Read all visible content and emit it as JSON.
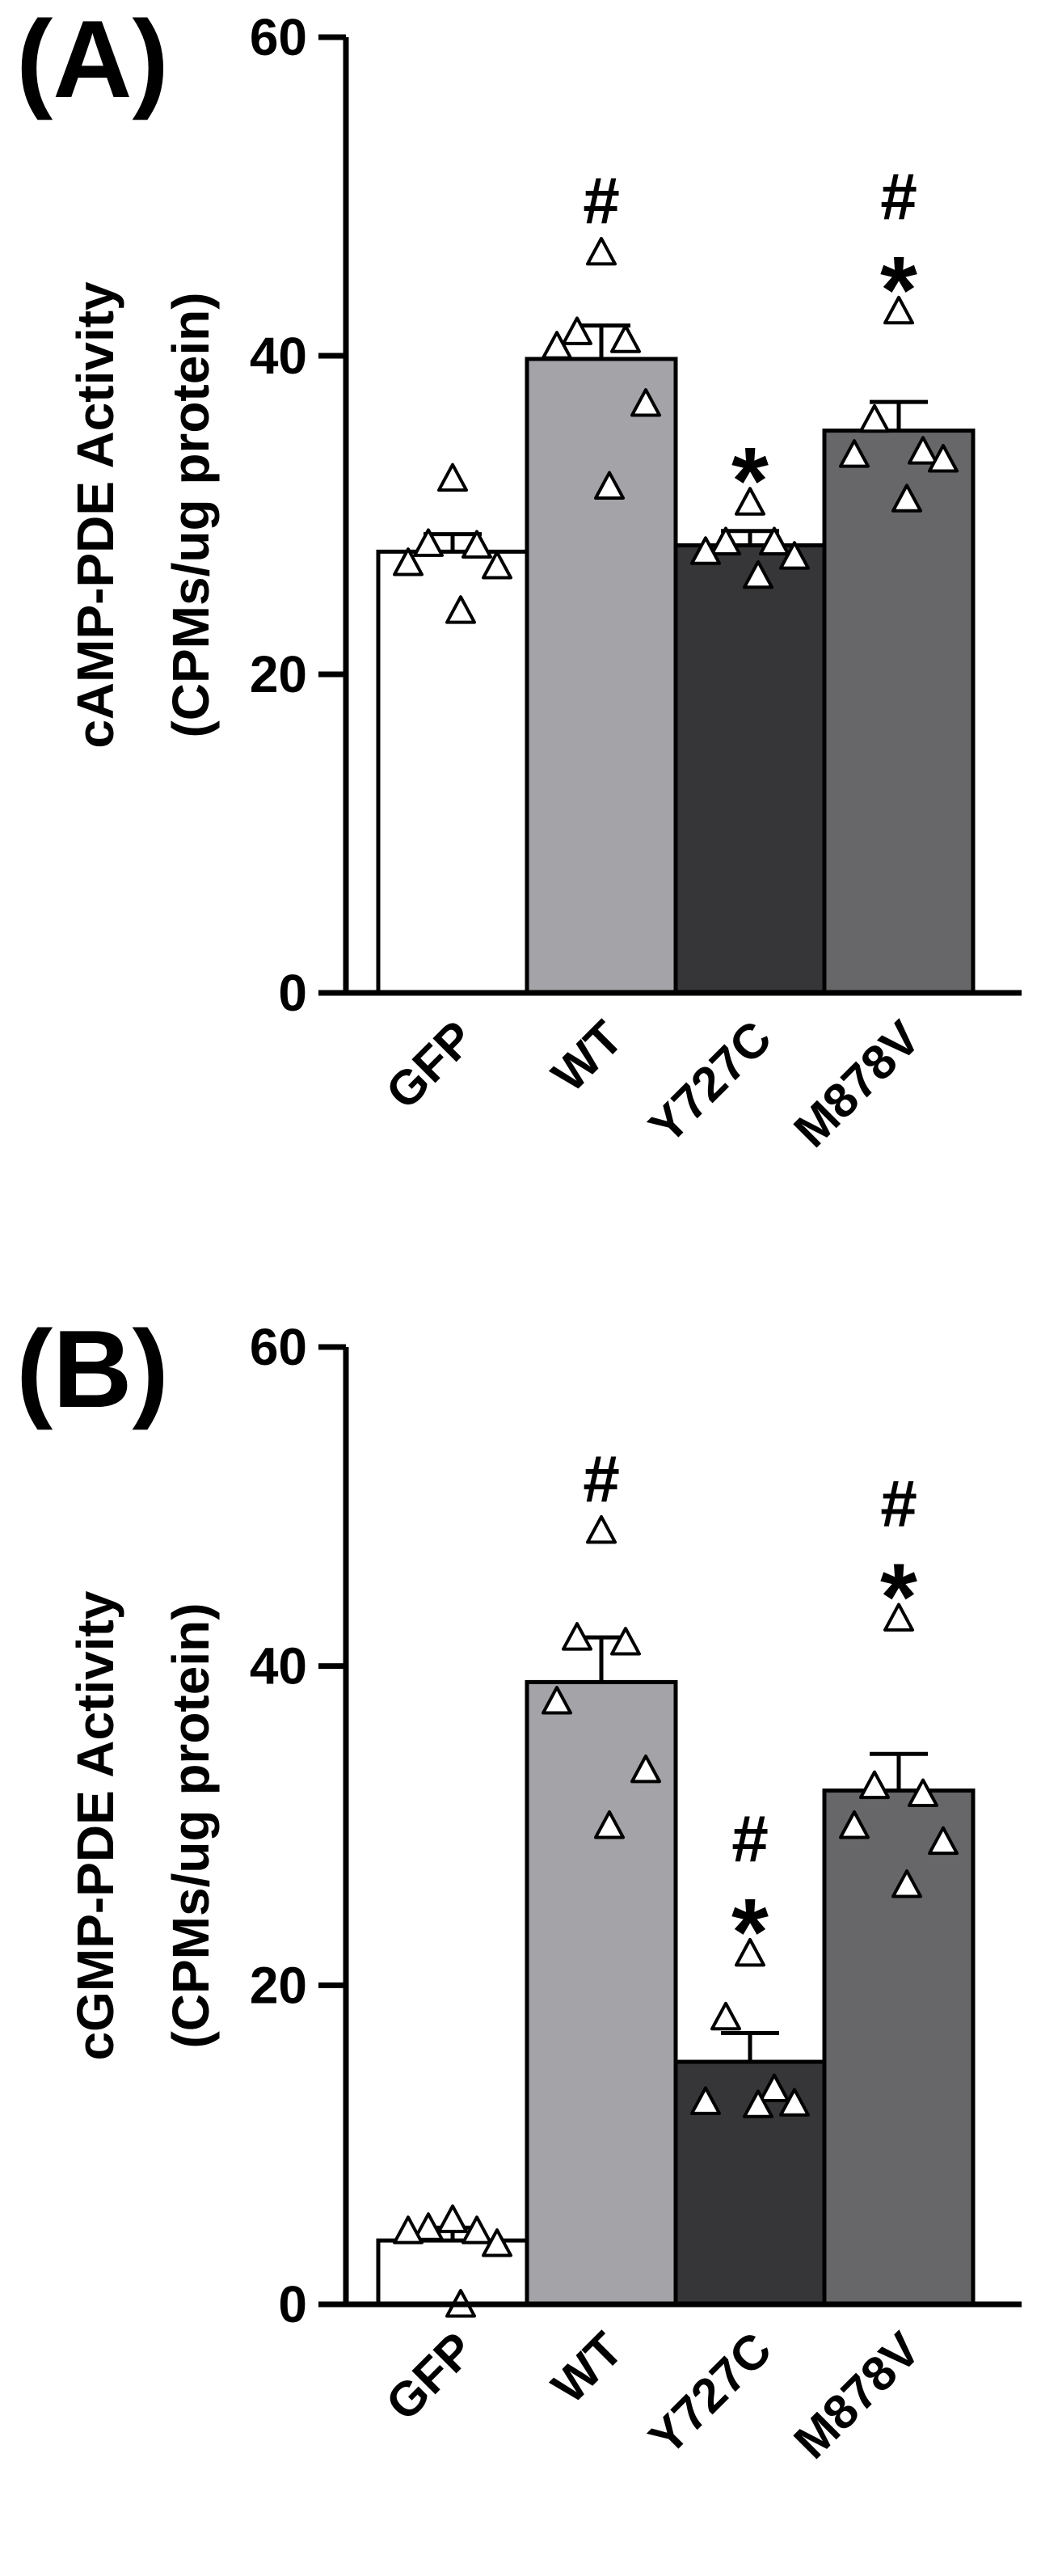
{
  "colors": {
    "GFP": "#ffffff",
    "WT": "#a3a3a8",
    "Y727C": "#363638",
    "M878V": "#676769",
    "axis": "#000000",
    "point_fill": "#ffffff"
  },
  "chart_data": [
    {
      "type": "bar",
      "panel_label": "(A)",
      "ylabel_line1": "cAMP-PDE Activity",
      "ylabel_line2": "(CPMs/ug protein)",
      "categories": [
        "GFP",
        "WT",
        "Y727C",
        "M878V"
      ],
      "values": [
        27.7,
        39.8,
        28.1,
        35.3
      ],
      "sem": [
        1.1,
        2.1,
        0.9,
        1.8
      ],
      "points": [
        [
          32.3,
          28.2,
          28.1,
          27.0,
          26.8,
          24.0
        ],
        [
          46.5,
          41.5,
          41.0,
          40.6,
          37.0,
          31.8
        ],
        [
          30.8,
          28.3,
          28.3,
          27.7,
          27.4,
          26.2
        ],
        [
          42.8,
          36.0,
          34.0,
          33.8,
          33.5,
          31.0
        ]
      ],
      "markers": {
        "hash": [
          false,
          true,
          false,
          true
        ],
        "star": [
          false,
          false,
          true,
          true
        ]
      },
      "ylim": [
        0,
        60
      ],
      "yticks": [
        "0",
        "20",
        "40",
        "60"
      ]
    },
    {
      "type": "bar",
      "panel_label": "(B)",
      "ylabel_line1": "cGMP-PDE Activity",
      "ylabel_line2": "(CPMs/ug protein)",
      "categories": [
        "GFP",
        "WT",
        "Y727C",
        "M878V"
      ],
      "values": [
        4.0,
        39.0,
        15.2,
        32.2
      ],
      "sem": [
        0.8,
        2.8,
        1.8,
        2.3
      ],
      "points": [
        [
          5.3,
          4.8,
          4.6,
          4.6,
          3.8,
          0.0
        ],
        [
          48.5,
          41.8,
          41.5,
          37.8,
          33.5,
          30.0
        ],
        [
          22.0,
          18.0,
          13.5,
          12.7,
          12.6,
          12.5
        ],
        [
          43.0,
          32.5,
          32.0,
          30.0,
          29.0,
          26.3
        ]
      ],
      "markers": {
        "hash": [
          false,
          true,
          true,
          true
        ],
        "star": [
          false,
          false,
          true,
          true
        ]
      },
      "ylim": [
        0,
        60
      ],
      "yticks": [
        "0",
        "20",
        "40",
        "60"
      ]
    }
  ]
}
